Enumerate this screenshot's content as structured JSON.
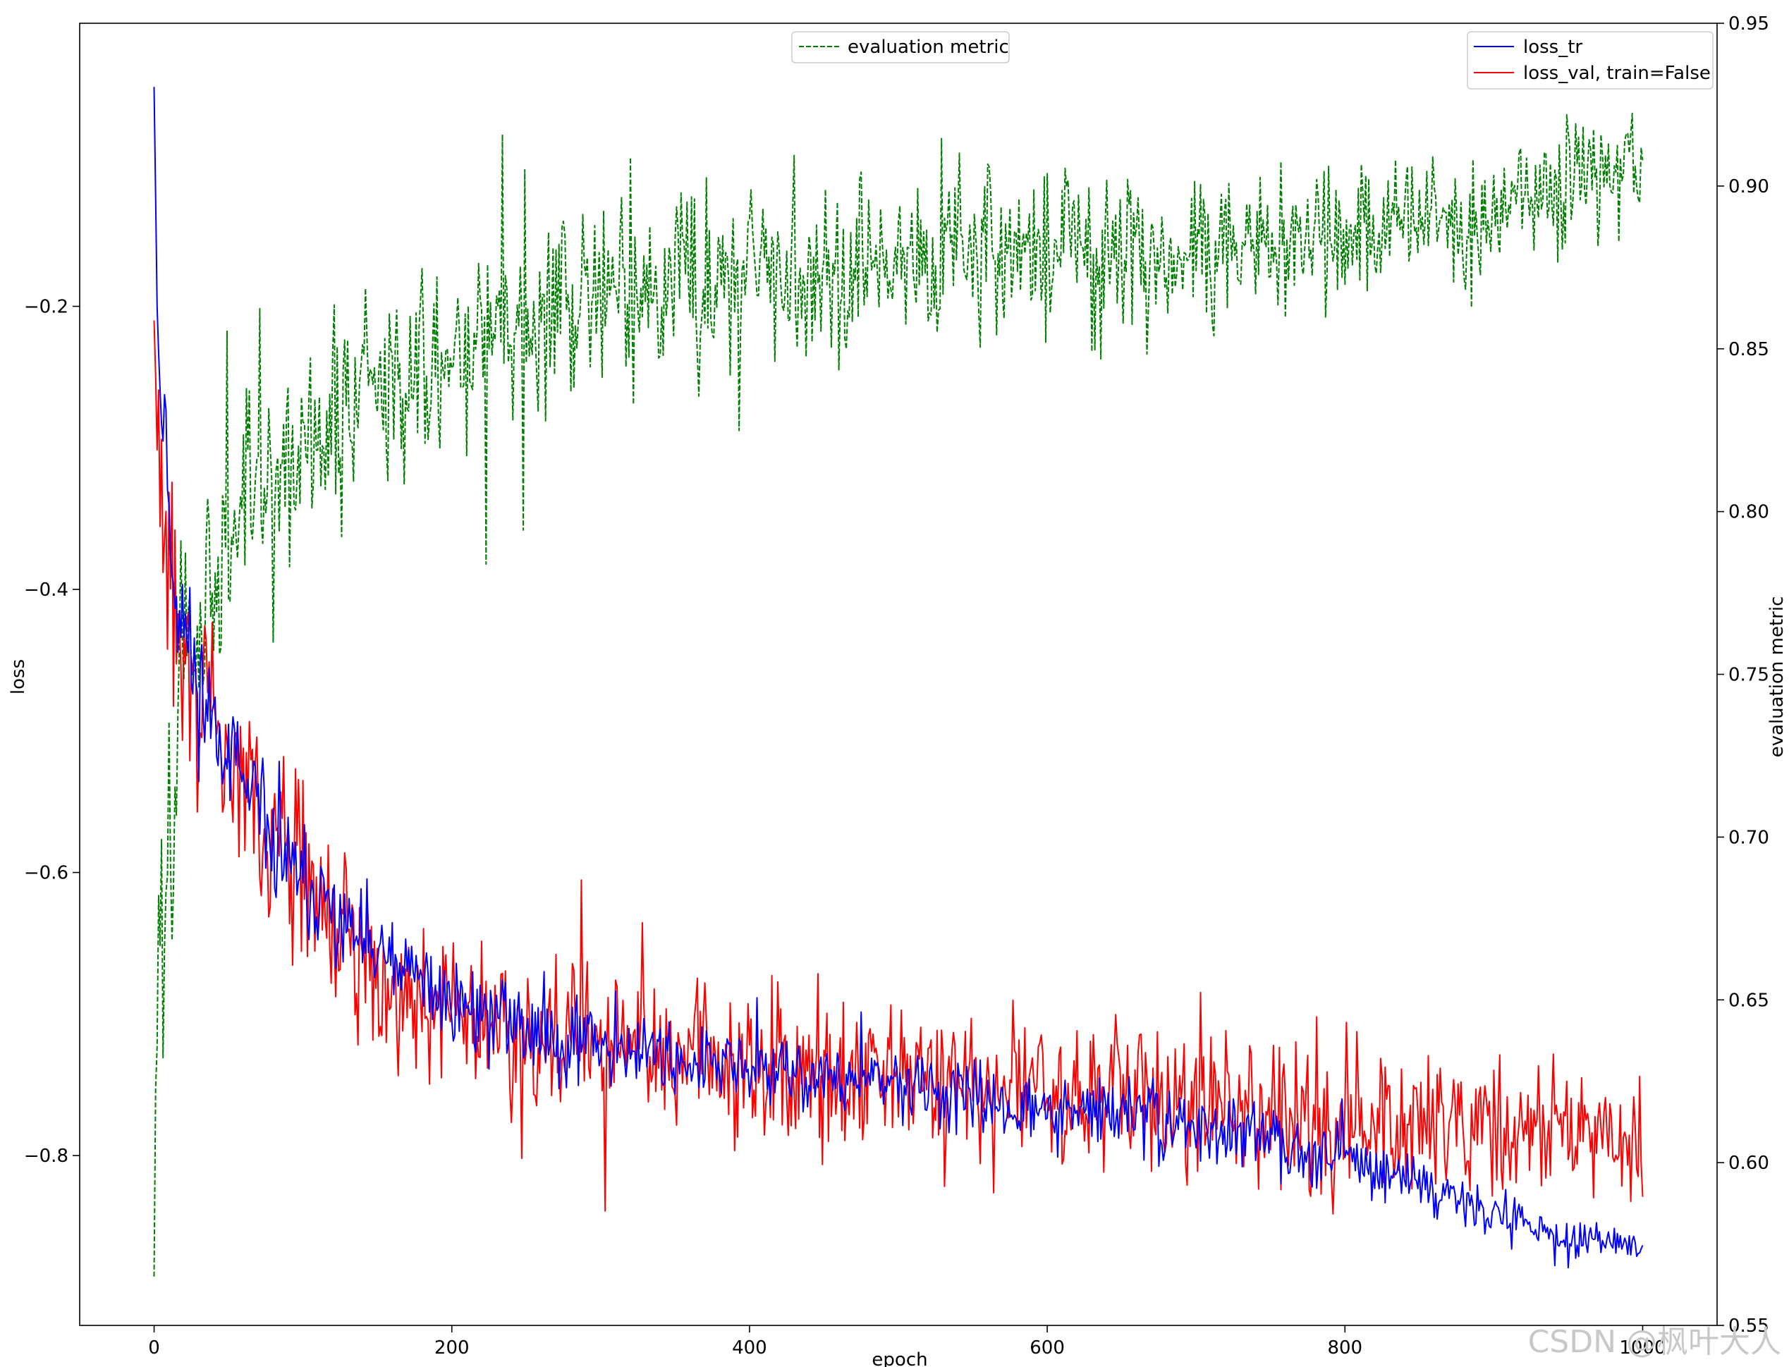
{
  "chart_data": {
    "type": "line",
    "xlabel": "epoch",
    "ylabel_left": "loss",
    "ylabel_right": "evaluation metric",
    "xlim": [
      -50,
      1050
    ],
    "ylim_left": [
      -0.92,
      -0.0
    ],
    "ylim_right": [
      0.55,
      0.95
    ],
    "x_ticks": [
      0,
      200,
      400,
      600,
      800,
      1000
    ],
    "y_left_ticks": [
      -0.2,
      -0.4,
      -0.6,
      -0.8
    ],
    "y_right_ticks": [
      0.55,
      0.6,
      0.65,
      0.7,
      0.75,
      0.8,
      0.85,
      0.9,
      0.95
    ],
    "grid": false,
    "legend_left": {
      "placement": "top-center",
      "entries": [
        "evaluation metric"
      ]
    },
    "legend_right": {
      "placement": "top-right",
      "entries": [
        "loss_tr",
        "loss_val, train=False"
      ]
    },
    "series": [
      {
        "name": "loss_tr",
        "axis": "left",
        "color": "#0000ff",
        "style": "solid",
        "x": [
          0,
          2,
          5,
          8,
          10,
          15,
          20,
          25,
          30,
          40,
          50,
          60,
          80,
          100,
          120,
          150,
          200,
          250,
          300,
          350,
          400,
          450,
          500,
          550,
          600,
          650,
          700,
          750,
          800,
          850,
          900,
          950,
          1000
        ],
        "values": [
          -0.045,
          -0.2,
          -0.29,
          -0.27,
          -0.36,
          -0.4,
          -0.43,
          -0.45,
          -0.47,
          -0.49,
          -0.51,
          -0.54,
          -0.58,
          -0.61,
          -0.63,
          -0.66,
          -0.69,
          -0.71,
          -0.72,
          -0.73,
          -0.74,
          -0.745,
          -0.75,
          -0.76,
          -0.77,
          -0.77,
          -0.78,
          -0.79,
          -0.8,
          -0.82,
          -0.84,
          -0.86,
          -0.865
        ],
        "amplitude": [
          0,
          0,
          0.02,
          0.02,
          0.04,
          0.05,
          0.04,
          0.04,
          0.04,
          0.035,
          0.03,
          0.03,
          0.03,
          0.03,
          0.03,
          0.03,
          0.025,
          0.025,
          0.025,
          0.02,
          0.02,
          0.02,
          0.02,
          0.02,
          0.02,
          0.02,
          0.02,
          0.02,
          0.015,
          0.015,
          0.012,
          0.01,
          0.008
        ]
      },
      {
        "name": "loss_val, train=False",
        "axis": "left",
        "color": "#ff0000",
        "style": "solid",
        "x": [
          0,
          2,
          5,
          10,
          15,
          20,
          25,
          30,
          40,
          50,
          60,
          80,
          100,
          120,
          150,
          200,
          250,
          300,
          350,
          400,
          450,
          500,
          550,
          600,
          650,
          700,
          750,
          800,
          850,
          900,
          950,
          1000
        ],
        "values": [
          -0.21,
          -0.3,
          -0.34,
          -0.38,
          -0.42,
          -0.45,
          -0.46,
          -0.48,
          -0.5,
          -0.52,
          -0.54,
          -0.57,
          -0.6,
          -0.64,
          -0.67,
          -0.7,
          -0.71,
          -0.72,
          -0.73,
          -0.735,
          -0.74,
          -0.745,
          -0.75,
          -0.755,
          -0.76,
          -0.76,
          -0.765,
          -0.77,
          -0.775,
          -0.78,
          -0.785,
          -0.79
        ],
        "amplitude": [
          0,
          0.03,
          0.05,
          0.06,
          0.07,
          0.06,
          0.06,
          0.06,
          0.06,
          0.05,
          0.05,
          0.05,
          0.05,
          0.045,
          0.045,
          0.045,
          0.045,
          0.045,
          0.045,
          0.045,
          0.045,
          0.045,
          0.045,
          0.045,
          0.045,
          0.045,
          0.045,
          0.045,
          0.04,
          0.04,
          0.04,
          0.04
        ]
      },
      {
        "name": "evaluation metric",
        "axis": "right",
        "color": "#008000",
        "style": "dashed",
        "x": [
          0,
          2,
          5,
          8,
          10,
          15,
          20,
          30,
          40,
          60,
          80,
          100,
          150,
          200,
          250,
          300,
          350,
          400,
          450,
          500,
          550,
          600,
          650,
          700,
          750,
          800,
          850,
          900,
          950,
          1000
        ],
        "values": [
          0.565,
          0.66,
          0.68,
          0.65,
          0.69,
          0.74,
          0.76,
          0.77,
          0.78,
          0.8,
          0.81,
          0.82,
          0.84,
          0.85,
          0.86,
          0.865,
          0.87,
          0.875,
          0.875,
          0.877,
          0.88,
          0.88,
          0.88,
          0.882,
          0.884,
          0.886,
          0.89,
          0.895,
          0.9,
          0.905
        ],
        "amplitude": [
          0,
          0.03,
          0.04,
          0.04,
          0.04,
          0.04,
          0.035,
          0.03,
          0.03,
          0.03,
          0.03,
          0.03,
          0.025,
          0.025,
          0.025,
          0.025,
          0.025,
          0.022,
          0.022,
          0.02,
          0.02,
          0.02,
          0.02,
          0.02,
          0.018,
          0.018,
          0.016,
          0.015,
          0.014,
          0.012
        ]
      }
    ]
  },
  "watermark_text": "CSDN @枫叶大人"
}
